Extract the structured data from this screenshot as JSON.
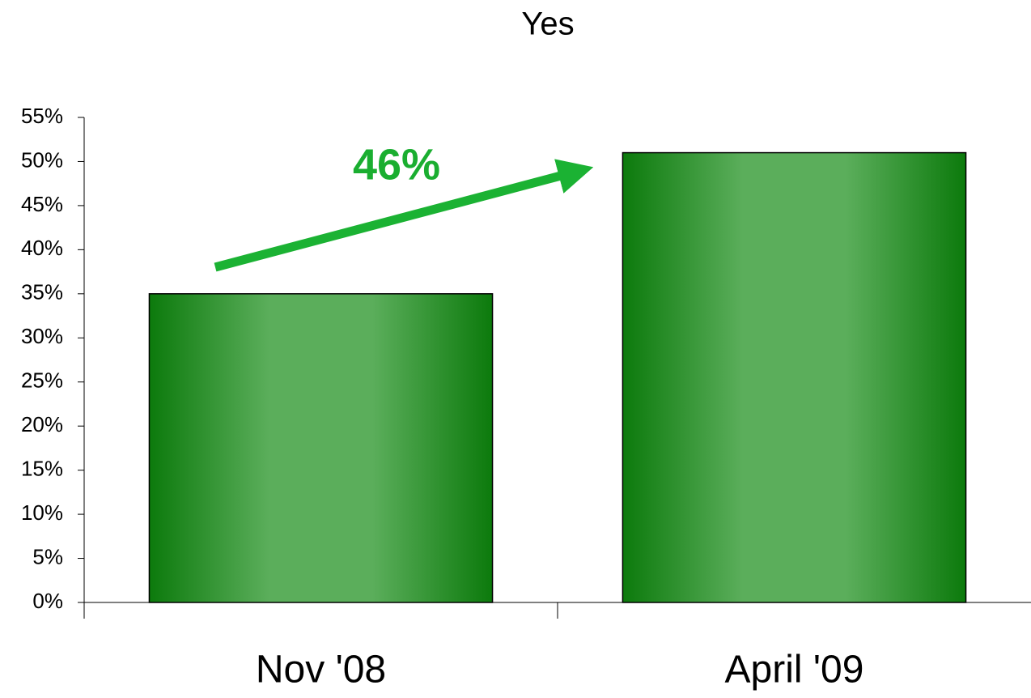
{
  "chart_data": {
    "type": "bar",
    "title": "Yes",
    "categories": [
      "Nov '08",
      "April '09"
    ],
    "values": [
      35,
      51
    ],
    "ylim": [
      0,
      55
    ],
    "yticks": [
      {
        "value": 0,
        "label": "0%"
      },
      {
        "value": 5,
        "label": "5%"
      },
      {
        "value": 10,
        "label": "10%"
      },
      {
        "value": 15,
        "label": "15%"
      },
      {
        "value": 20,
        "label": "20%"
      },
      {
        "value": 25,
        "label": "25%"
      },
      {
        "value": 30,
        "label": "30%"
      },
      {
        "value": 35,
        "label": "35%"
      },
      {
        "value": 40,
        "label": "40%"
      },
      {
        "value": 45,
        "label": "45%"
      },
      {
        "value": 50,
        "label": "50%"
      },
      {
        "value": 55,
        "label": "55%"
      }
    ],
    "grid": false,
    "color": "#1a8a1a",
    "annotations": [
      "46%"
    ]
  }
}
